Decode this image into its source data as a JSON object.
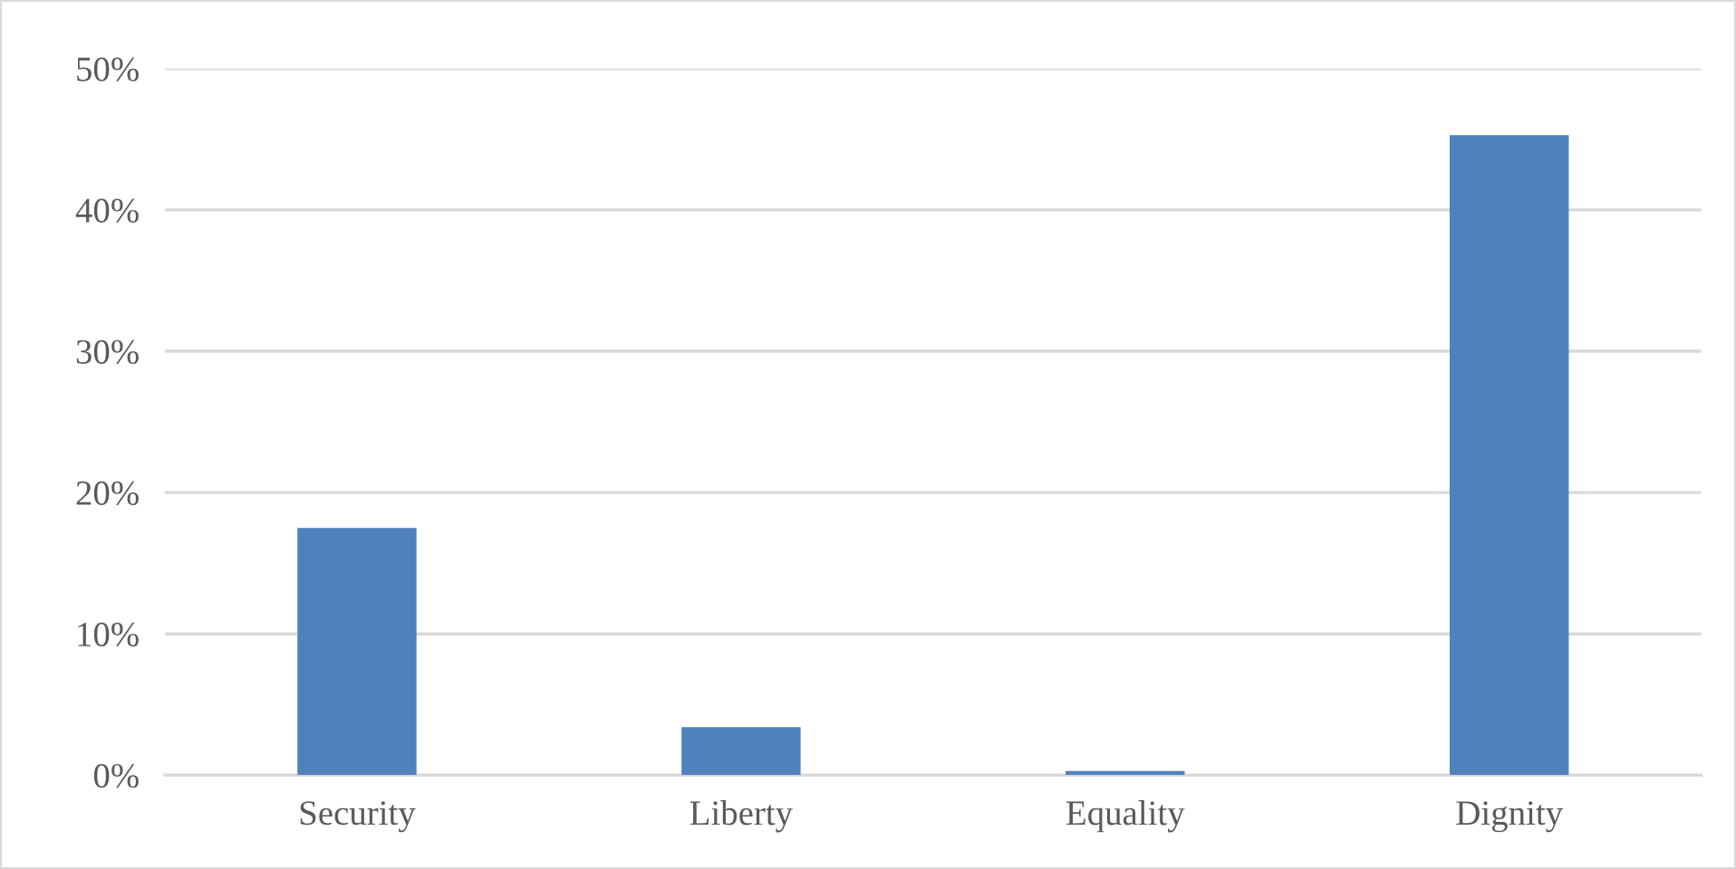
{
  "chart_data": {
    "type": "bar",
    "categories": [
      "Security",
      "Liberty",
      "Equality",
      "Dignity"
    ],
    "values": [
      17.5,
      3.4,
      0.3,
      45.3
    ],
    "color": "#4f81bd",
    "ylim": [
      0,
      50
    ],
    "yticks": [
      {
        "value": 0,
        "label": "0%"
      },
      {
        "value": 10,
        "label": "10%"
      },
      {
        "value": 20,
        "label": "20%"
      },
      {
        "value": 30,
        "label": "30%"
      },
      {
        "value": 40,
        "label": "40%"
      },
      {
        "value": 50,
        "label": "50%"
      }
    ],
    "grid": "y"
  }
}
